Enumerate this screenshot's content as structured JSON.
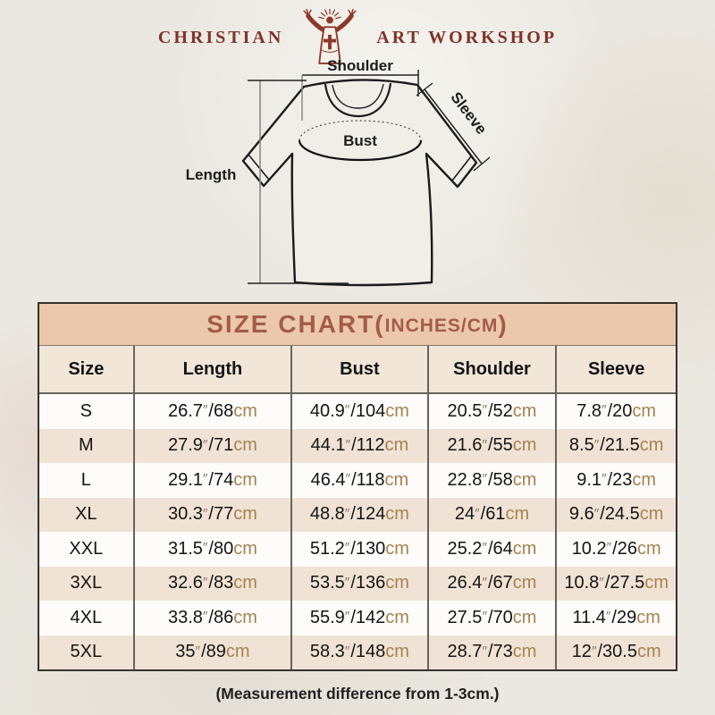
{
  "brand": {
    "left": "CHRISTIAN",
    "right": "ART WORKSHOP"
  },
  "diagram": {
    "shoulder": "Shoulder",
    "sleeve": "Sleeve",
    "bust": "Bust",
    "length": "Length"
  },
  "size_chart": {
    "title_main": "SIZE CHART",
    "paren_open": "(",
    "title_sub": "INCHES/CM",
    "paren_close": ")",
    "columns": [
      "Size",
      "Length",
      "Bust",
      "Shoulder",
      "Sleeve"
    ],
    "units": {
      "inch_mark": "″",
      "separator": "/",
      "cm_suffix": "cm"
    },
    "rows": [
      {
        "size": "S",
        "measures": [
          {
            "in": "26.7",
            "cm": "68"
          },
          {
            "in": "40.9",
            "cm": "104"
          },
          {
            "in": "20.5",
            "cm": "52"
          },
          {
            "in": "7.8",
            "cm": "20"
          }
        ]
      },
      {
        "size": "M",
        "measures": [
          {
            "in": "27.9",
            "cm": "71"
          },
          {
            "in": "44.1",
            "cm": "112"
          },
          {
            "in": "21.6",
            "cm": "55"
          },
          {
            "in": "8.5",
            "cm": "21.5"
          }
        ]
      },
      {
        "size": "L",
        "measures": [
          {
            "in": "29.1",
            "cm": "74"
          },
          {
            "in": "46.4",
            "cm": "118"
          },
          {
            "in": "22.8",
            "cm": "58"
          },
          {
            "in": "9.1",
            "cm": "23"
          }
        ]
      },
      {
        "size": "XL",
        "measures": [
          {
            "in": "30.3",
            "cm": "77"
          },
          {
            "in": "48.8",
            "cm": "124"
          },
          {
            "in": "24",
            "cm": "61"
          },
          {
            "in": "9.6",
            "cm": "24.5"
          }
        ]
      },
      {
        "size": "XXL",
        "measures": [
          {
            "in": "31.5",
            "cm": "80"
          },
          {
            "in": "51.2",
            "cm": "130"
          },
          {
            "in": "25.2",
            "cm": "64"
          },
          {
            "in": "10.2",
            "cm": "26"
          }
        ]
      },
      {
        "size": "3XL",
        "measures": [
          {
            "in": "32.6",
            "cm": "83"
          },
          {
            "in": "53.5",
            "cm": "136"
          },
          {
            "in": "26.4",
            "cm": "67"
          },
          {
            "in": "10.8",
            "cm": "27.5"
          }
        ]
      },
      {
        "size": "4XL",
        "measures": [
          {
            "in": "33.8",
            "cm": "86"
          },
          {
            "in": "55.9",
            "cm": "142"
          },
          {
            "in": "27.5",
            "cm": "70"
          },
          {
            "in": "11.4",
            "cm": "29"
          }
        ]
      },
      {
        "size": "5XL",
        "measures": [
          {
            "in": "35",
            "cm": "89"
          },
          {
            "in": "58.3",
            "cm": "148"
          },
          {
            "in": "28.7",
            "cm": "73"
          },
          {
            "in": "12",
            "cm": "30.5"
          }
        ]
      }
    ]
  },
  "footer": {
    "note": "(Measurement difference from 1-3cm.)"
  },
  "colors": {
    "title_band_bg": "#ebc8ac",
    "title_text": "#a55b48",
    "header_row_bg": "#f2e6d9",
    "alt_row_bg": "#f0e3d5",
    "cm_text": "#a5824f",
    "inch_mark": "#8d7d68",
    "logo_maroon": "#7e332a"
  },
  "chart_data": {
    "type": "table",
    "title": "SIZE CHART(INCHES/CM)",
    "columns": [
      "Size",
      "Length",
      "Bust",
      "Shoulder",
      "Sleeve"
    ],
    "rows": [
      [
        "S",
        "26.7″/68cm",
        "40.9″/104cm",
        "20.5″/52cm",
        "7.8″/20cm"
      ],
      [
        "M",
        "27.9″/71cm",
        "44.1″/112cm",
        "21.6″/55cm",
        "8.5″/21.5cm"
      ],
      [
        "L",
        "29.1″/74cm",
        "46.4″/118cm",
        "22.8″/58cm",
        "9.1″/23cm"
      ],
      [
        "XL",
        "30.3″/77cm",
        "48.8″/124cm",
        "24″/61cm",
        "9.6″/24.5cm"
      ],
      [
        "XXL",
        "31.5″/80cm",
        "51.2″/130cm",
        "25.2″/64cm",
        "10.2″/26cm"
      ],
      [
        "3XL",
        "32.6″/83cm",
        "53.5″/136cm",
        "26.4″/67cm",
        "10.8″/27.5cm"
      ],
      [
        "4XL",
        "33.8″/86cm",
        "55.9″/142cm",
        "27.5″/70cm",
        "11.4″/29cm"
      ],
      [
        "5XL",
        "35″/89cm",
        "58.3″/148cm",
        "28.7″/73cm",
        "12″/30.5cm"
      ]
    ],
    "note": "(Measurement difference from 1-3cm.)"
  }
}
